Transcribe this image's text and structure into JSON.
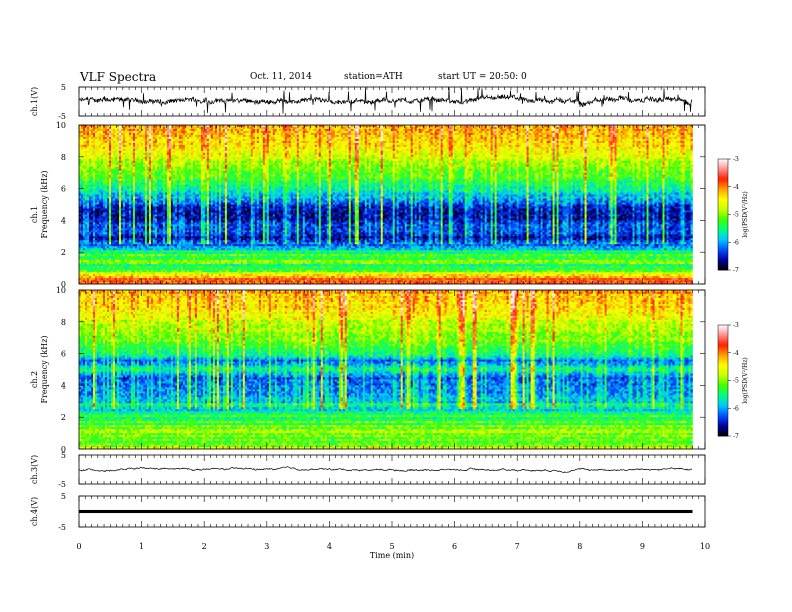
{
  "header": {
    "title": "VLF Spectra",
    "date": "Oct. 11, 2014",
    "station": "station=ATH",
    "start": "start UT = 20:50: 0"
  },
  "chart_data": [
    {
      "type": "line",
      "name": "ch1-waveform",
      "ylabel": "ch.1(V)",
      "ylim": [
        -5,
        5
      ],
      "yticks": [
        "5",
        "-5"
      ],
      "xlim": [
        0,
        10
      ],
      "color": "#000000",
      "data_end_min": 9.8,
      "baseline_v": 0.3,
      "spike_range_v": [
        -5,
        5
      ]
    },
    {
      "type": "heatmap",
      "name": "ch1-spectrogram",
      "ylabel": "ch.1",
      "ylabel2": "Frequency (kHz)",
      "ylim": [
        0,
        10
      ],
      "yticks": [
        "0",
        "2",
        "4",
        "6",
        "8",
        "10"
      ],
      "xlim": [
        0,
        10
      ],
      "data_end_min": 9.8,
      "colorbar": {
        "label": "log(PSD(V²/Hz)",
        "range": [
          -7,
          -3
        ],
        "ticks": [
          "-3",
          "-4",
          "-5",
          "-6",
          "-7"
        ],
        "colors": [
          "#000000",
          "#0000a0",
          "#0050ff",
          "#00c8ff",
          "#00ff80",
          "#40ff00",
          "#c8ff00",
          "#ffff00",
          "#ffa000",
          "#ff2000",
          "#ff9090",
          "#ffffff"
        ]
      },
      "profile_log_psd_by_freq_khz": [
        {
          "f": 0.0,
          "v": -3.6
        },
        {
          "f": 0.5,
          "v": -4.3
        },
        {
          "f": 1.0,
          "v": -5.3
        },
        {
          "f": 1.5,
          "v": -5.2
        },
        {
          "f": 2.0,
          "v": -5.5
        },
        {
          "f": 2.3,
          "v": -5.9
        },
        {
          "f": 2.5,
          "v": -6.3
        },
        {
          "f": 3.0,
          "v": -6.5
        },
        {
          "f": 3.5,
          "v": -6.3
        },
        {
          "f": 4.0,
          "v": -6.6
        },
        {
          "f": 4.5,
          "v": -6.7
        },
        {
          "f": 5.0,
          "v": -6.4
        },
        {
          "f": 5.5,
          "v": -6.0
        },
        {
          "f": 6.0,
          "v": -5.6
        },
        {
          "f": 7.0,
          "v": -5.2
        },
        {
          "f": 8.0,
          "v": -4.8
        },
        {
          "f": 9.0,
          "v": -4.4
        },
        {
          "f": 10.0,
          "v": -4.2
        }
      ]
    },
    {
      "type": "heatmap",
      "name": "ch2-spectrogram",
      "ylabel": "ch.2",
      "ylabel2": "Frequency (kHz)",
      "ylim": [
        0,
        10
      ],
      "yticks": [
        "0",
        "2",
        "4",
        "6",
        "8",
        "10"
      ],
      "xlim": [
        0,
        10
      ],
      "data_end_min": 9.8,
      "colorbar": {
        "label": "log(PSD(V²/Hz)",
        "range": [
          -7,
          -3
        ],
        "ticks": [
          "-3",
          "-4",
          "-5",
          "-6",
          "-7"
        ],
        "colors": [
          "#000000",
          "#0000a0",
          "#0050ff",
          "#00c8ff",
          "#00ff80",
          "#40ff00",
          "#c8ff00",
          "#ffff00",
          "#ffa000",
          "#ff2000",
          "#ff9090",
          "#ffffff"
        ]
      },
      "profile_log_psd_by_freq_khz": [
        {
          "f": 0.0,
          "v": -4.6
        },
        {
          "f": 0.5,
          "v": -5.4
        },
        {
          "f": 1.0,
          "v": -4.8
        },
        {
          "f": 1.5,
          "v": -5.2
        },
        {
          "f": 2.0,
          "v": -5.5
        },
        {
          "f": 2.5,
          "v": -5.6
        },
        {
          "f": 3.0,
          "v": -5.9
        },
        {
          "f": 3.5,
          "v": -6.1
        },
        {
          "f": 4.0,
          "v": -6.2
        },
        {
          "f": 4.5,
          "v": -6.3
        },
        {
          "f": 5.0,
          "v": -5.6
        },
        {
          "f": 5.5,
          "v": -6.3
        },
        {
          "f": 6.0,
          "v": -5.5
        },
        {
          "f": 7.0,
          "v": -5.1
        },
        {
          "f": 8.0,
          "v": -4.8
        },
        {
          "f": 9.0,
          "v": -4.4
        },
        {
          "f": 10.0,
          "v": -4.2
        }
      ]
    },
    {
      "type": "line",
      "name": "ch3-waveform",
      "ylabel": "ch.3(V)",
      "ylim": [
        -5,
        5
      ],
      "yticks": [
        "5",
        "-5"
      ],
      "xlim": [
        0,
        10
      ],
      "color": "#000000",
      "data_end_min": 9.8,
      "baseline_v": 0.0,
      "spike_range_v": [
        -0.3,
        0.3
      ]
    },
    {
      "type": "line",
      "name": "ch4-waveform",
      "ylabel": "ch.4(V)",
      "ylim": [
        -5,
        5
      ],
      "yticks": [
        "5",
        "-5"
      ],
      "xlim": [
        0,
        10
      ],
      "xlabel": "Time (min)",
      "xticks": [
        "0",
        "1",
        "2",
        "3",
        "4",
        "5",
        "6",
        "7",
        "8",
        "9",
        "10"
      ],
      "color": "#000000",
      "data_end_min": 9.8,
      "baseline_v": 0.0,
      "band_halfwidth_v": 0.5
    }
  ]
}
